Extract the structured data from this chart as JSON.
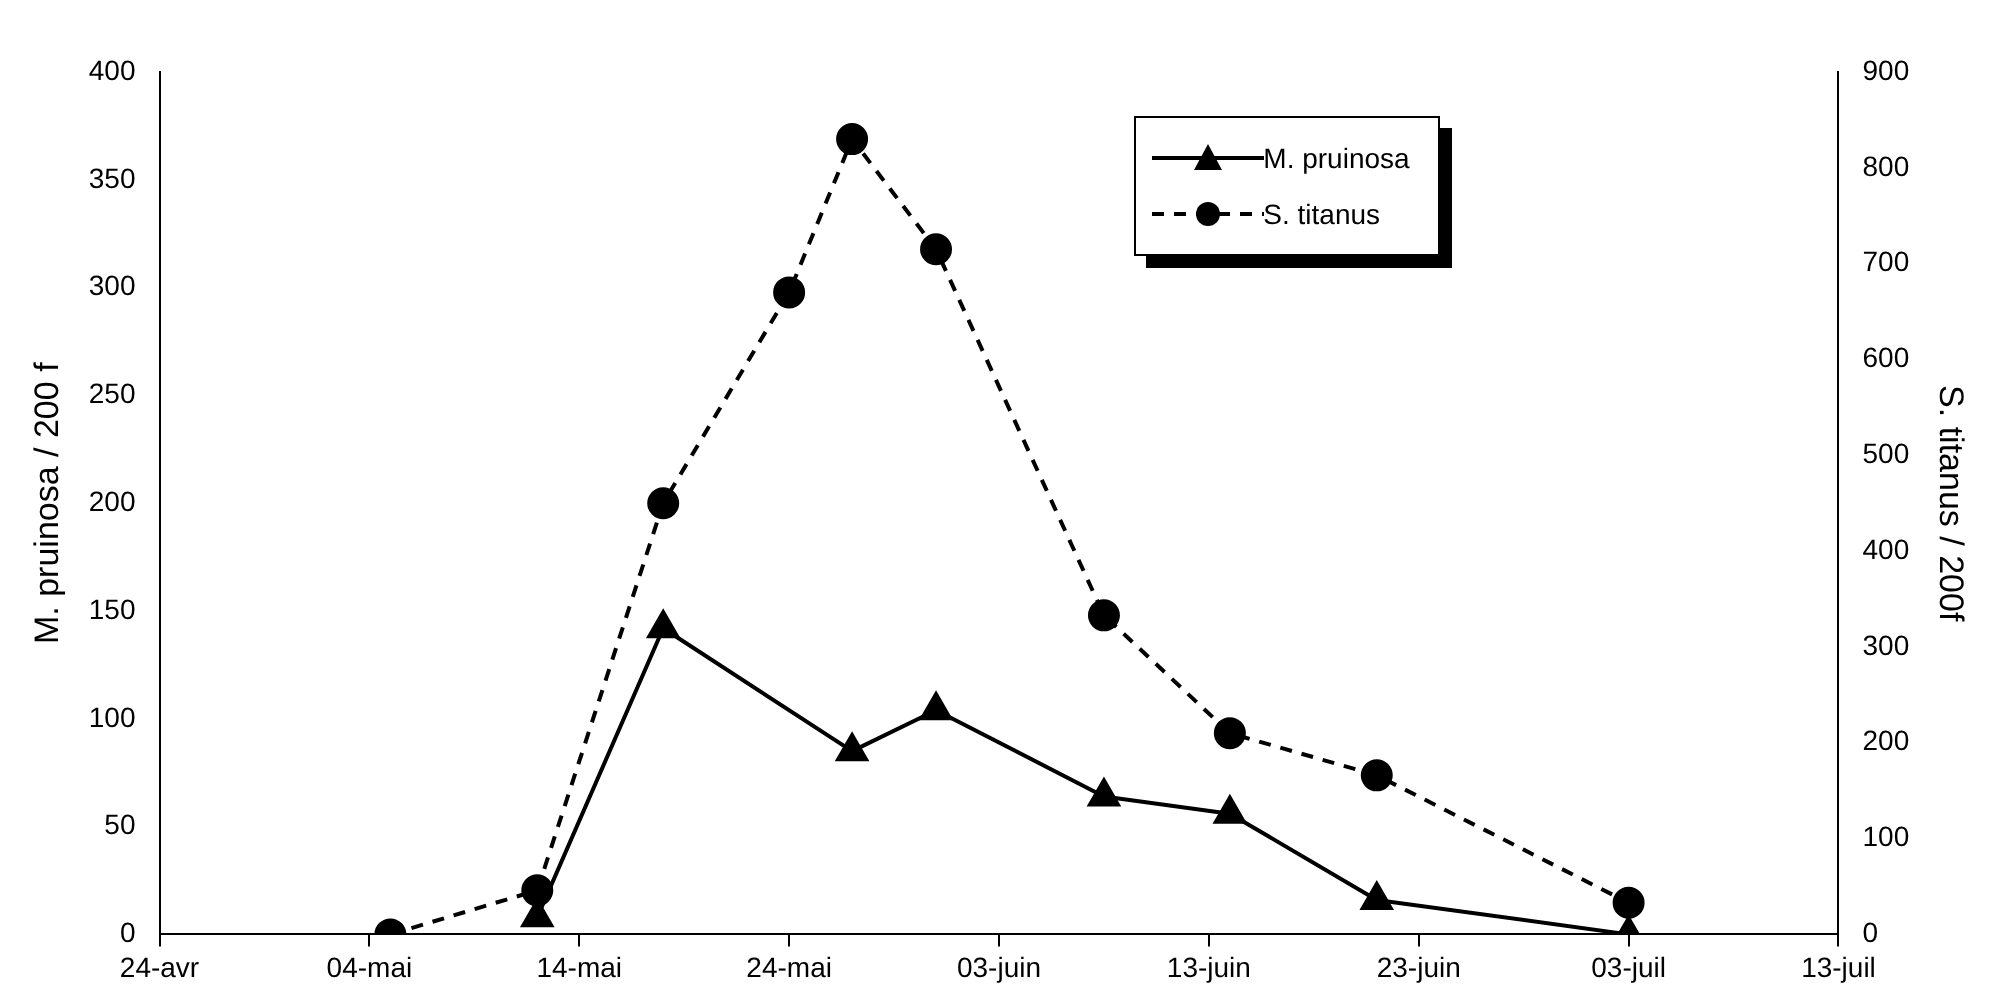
{
  "chart_data": {
    "type": "line",
    "ylabel": "M. pruinosa / 200 f",
    "y2label": "S. titanus / 200f",
    "xlim": [
      "--04-24",
      "--07-13"
    ],
    "xticks": [
      {
        "value": "--04-24",
        "label": "24-avr"
      },
      {
        "value": "--05-04",
        "label": "04-mai"
      },
      {
        "value": "--05-14",
        "label": "14-mai"
      },
      {
        "value": "--05-24",
        "label": "24-mai"
      },
      {
        "value": "--06-03",
        "label": "03-juin"
      },
      {
        "value": "--06-13",
        "label": "13-juin"
      },
      {
        "value": "--06-23",
        "label": "23-juin"
      },
      {
        "value": "--07-03",
        "label": "03-juil"
      },
      {
        "value": "--07-13",
        "label": "13-juil"
      }
    ],
    "ylim": [
      0,
      400
    ],
    "yticks": [
      0,
      50,
      100,
      150,
      200,
      250,
      300,
      350,
      400
    ],
    "y2lim": [
      0,
      900
    ],
    "y2ticks": [
      0,
      100,
      200,
      300,
      400,
      500,
      600,
      700,
      800,
      900
    ],
    "grid": false,
    "legend": "top right",
    "series": [
      {
        "name": "M. pruinosa",
        "color": "#000000",
        "marker": "triangle",
        "line_style": "solid",
        "x": [
          "--05-12",
          "--05-18",
          "--05-27",
          "--05-31",
          "--06-08",
          "--06-14",
          "--06-21",
          "--07-03"
        ],
        "values": [
          8,
          142,
          85,
          104,
          64,
          56,
          16,
          0
        ]
      },
      {
        "name": "S. titanus",
        "color": "#000000",
        "marker": "circle",
        "line_style": "dashed",
        "axis": "y2",
        "x": [
          "--05-05",
          "--05-12",
          "--05-18",
          "--05-24",
          "--05-27",
          "--05-31",
          "--06-08",
          "--06-14",
          "--06-21",
          "--07-03"
        ],
        "values": [
          0,
          46,
          450,
          670,
          830,
          715,
          333,
          210,
          166,
          33
        ]
      }
    ]
  }
}
